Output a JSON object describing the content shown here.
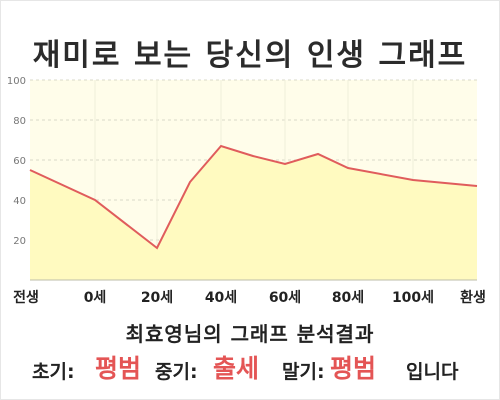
{
  "chart_data": {
    "type": "area",
    "title": "재미로 보는 당신의 인생 그래프",
    "x_ticks": [
      "전생",
      "0세",
      "20세",
      "40세",
      "60세",
      "80세",
      "100세",
      "환생"
    ],
    "y_ticks": [
      "20",
      "40",
      "60",
      "80",
      "100"
    ],
    "ylim": [
      0,
      100
    ],
    "series": [
      {
        "points": [
          {
            "x": "전생",
            "y": 55
          },
          {
            "x": "0세",
            "y": 40
          },
          {
            "x": "20세",
            "y": 16
          },
          {
            "x": "30세",
            "y": 49
          },
          {
            "x": "40세",
            "y": 67
          },
          {
            "x": "50세",
            "y": 62
          },
          {
            "x": "60세",
            "y": 58
          },
          {
            "x": "70세",
            "y": 63
          },
          {
            "x": "80세",
            "y": 56
          },
          {
            "x": "100세",
            "y": 50
          },
          {
            "x": "환생",
            "y": 47
          }
        ]
      }
    ],
    "colors": {
      "line": "#e05c5c",
      "fill": "#fffac0",
      "plot_background": "#fffdea",
      "grid": "#d9d9c8"
    },
    "grid": true
  },
  "result": {
    "heading": "최효영님의 그래프 분석결과",
    "early_label": "초기:",
    "early_value": "평범",
    "middle_label": "중기:",
    "middle_value": "출세",
    "late_label": "말기:",
    "late_value": "평범",
    "ending": "입니다",
    "accent_color": "#e45555"
  }
}
